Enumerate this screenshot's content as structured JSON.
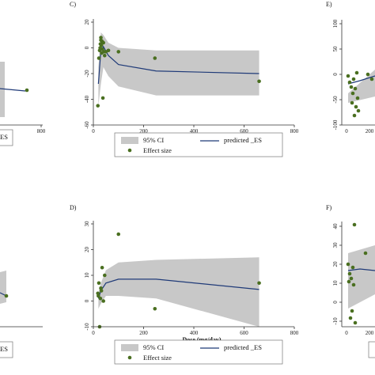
{
  "chart_data": [
    {
      "panel_label": "C)",
      "type": "line",
      "xlabel": "Dose (mg/day)",
      "ylabel": "",
      "xlim": [
        0,
        800
      ],
      "ylim": [
        -60,
        20
      ],
      "xticks": [
        0,
        200,
        400,
        600,
        800
      ],
      "yticks": [
        20,
        0,
        -20,
        -40,
        -60
      ],
      "series": [
        {
          "name": "predicted _ES",
          "x": [
            20,
            30,
            40,
            60,
            100,
            250,
            660
          ],
          "y": [
            -28,
            -2,
            1,
            -6,
            -13,
            -18,
            -20
          ]
        },
        {
          "name": "95% CI",
          "x": [
            20,
            30,
            40,
            60,
            100,
            250,
            660
          ],
          "lower": [
            -45,
            -28,
            -15,
            -22,
            -30,
            -37,
            -37
          ],
          "upper": [
            -15,
            12,
            10,
            4,
            0,
            -2,
            -2
          ]
        },
        {
          "name": "Effect size",
          "x": [
            18,
            22,
            25,
            27,
            28,
            30,
            30,
            32,
            33,
            35,
            36,
            38,
            40,
            42,
            45,
            50,
            60,
            100,
            245,
            660
          ],
          "y": [
            -45,
            -8,
            -2,
            0,
            3,
            6,
            8,
            2,
            -4,
            5,
            -1,
            -39,
            4,
            -3,
            -6,
            -3,
            -2,
            -3,
            -8,
            -26
          ]
        }
      ],
      "legend": [
        "95% CI",
        "predicted _ES",
        "Effect size"
      ]
    },
    {
      "panel_label": "D)",
      "type": "line",
      "xlabel": "Dose (mg/day)",
      "ylabel": "",
      "xlim": [
        0,
        800
      ],
      "ylim": [
        -10,
        30
      ],
      "xticks": [
        0,
        200,
        400,
        600,
        800
      ],
      "yticks": [
        30,
        20,
        10,
        0,
        -10
      ],
      "series": [
        {
          "name": "predicted _ES",
          "x": [
            20,
            30,
            50,
            100,
            250,
            660
          ],
          "y": [
            1,
            4,
            7,
            8.5,
            8.5,
            4.5
          ]
        },
        {
          "name": "95% CI",
          "x": [
            20,
            30,
            50,
            100,
            250,
            660
          ],
          "lower": [
            -3,
            -1,
            2,
            2,
            1,
            -10
          ],
          "upper": [
            3,
            7,
            12,
            15,
            16,
            17
          ]
        },
        {
          "name": "Effect size",
          "x": [
            18,
            20,
            22,
            25,
            28,
            30,
            32,
            35,
            40,
            45,
            100,
            245,
            660
          ],
          "y": [
            3,
            2,
            7,
            -10,
            1,
            5,
            4,
            13,
            0,
            10,
            26,
            -3,
            7
          ]
        }
      ],
      "legend": [
        "95% CI",
        "predicted _ES",
        "Effect size"
      ]
    }
  ],
  "partial_panels": {
    "left_top": {
      "tick": "800",
      "legend_fragment": "ES"
    },
    "left_bottom": {
      "legend_fragment": "ES"
    },
    "right_top": {
      "panel_label": "E)",
      "yticks": [
        "100",
        "50",
        "0",
        "-50",
        "-100"
      ],
      "xticks": [
        "0",
        "200"
      ]
    },
    "right_bottom": {
      "panel_label": "F)",
      "yticks": [
        "40",
        "30",
        "20",
        "10",
        "0",
        "-10"
      ],
      "xticks": [
        "0",
        "200"
      ]
    }
  },
  "colors": {
    "ci_fill": "#c8c8c8",
    "line": "#1f3a78",
    "dot": "#4a6f20"
  }
}
